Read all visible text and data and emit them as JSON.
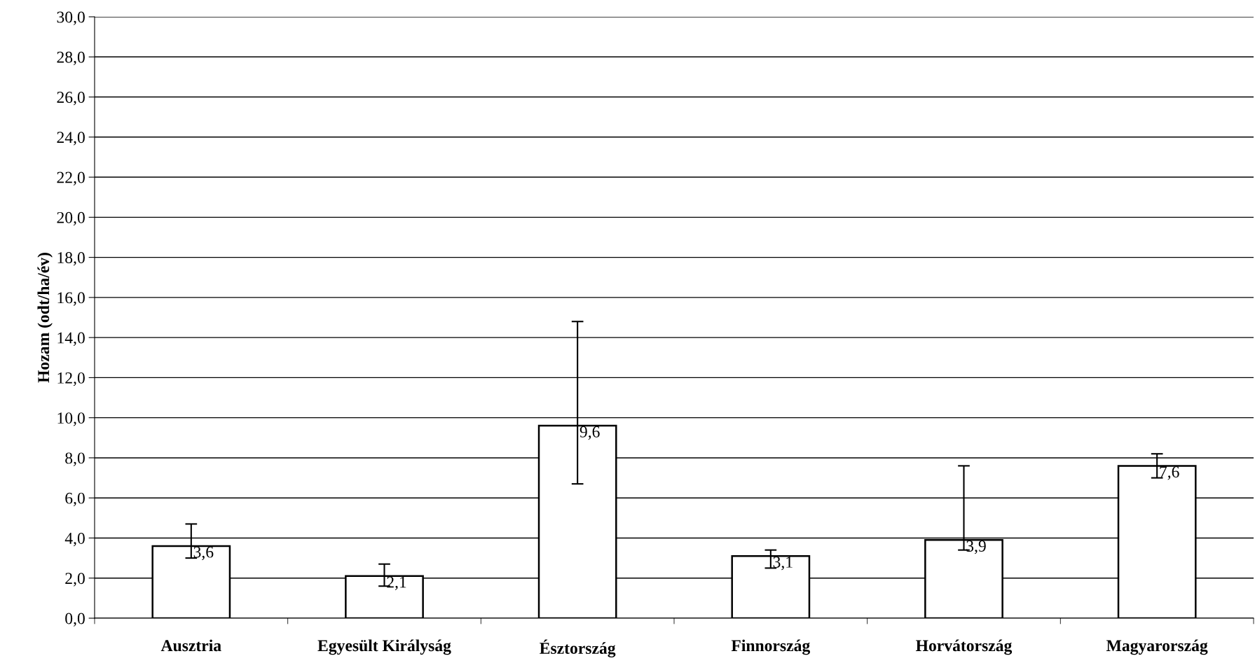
{
  "chart_data": {
    "type": "bar",
    "ylabel": "Hozam (odt/ha/év)",
    "categories": [
      "Ausztria",
      "Egyesült Királyság",
      "Észtország",
      "Finnország",
      "Horvátország",
      "Magyarország"
    ],
    "values": [
      3.6,
      2.1,
      9.6,
      3.1,
      3.9,
      7.6
    ],
    "errors": [
      [
        3.0,
        4.7
      ],
      [
        1.6,
        2.7
      ],
      [
        6.7,
        14.8
      ],
      [
        2.5,
        3.4
      ],
      [
        3.4,
        7.6
      ],
      [
        7.0,
        8.2
      ]
    ],
    "value_labels": [
      "3,6",
      "2,1",
      "9,6",
      "3,1",
      "3,9",
      "7,6"
    ],
    "color": "#ffffff",
    "ylim": [
      0,
      30
    ],
    "yticks": [
      {
        "value": 0,
        "label": "0,0"
      },
      {
        "value": 2,
        "label": "2,0"
      },
      {
        "value": 4,
        "label": "4,0"
      },
      {
        "value": 6,
        "label": "6,0"
      },
      {
        "value": 8,
        "label": "8,0"
      },
      {
        "value": 10,
        "label": "10,0"
      },
      {
        "value": 12,
        "label": "12,0"
      },
      {
        "value": 14,
        "label": "14,0"
      },
      {
        "value": 16,
        "label": "16,0"
      },
      {
        "value": 18,
        "label": "18,0"
      },
      {
        "value": 20,
        "label": "20,0"
      },
      {
        "value": 22,
        "label": "22,0"
      },
      {
        "value": 24,
        "label": "24,0"
      },
      {
        "value": 26,
        "label": "26,0"
      },
      {
        "value": 28,
        "label": "28,0"
      },
      {
        "value": 30,
        "label": "30,0"
      }
    ],
    "grid": "y",
    "legend": false
  }
}
